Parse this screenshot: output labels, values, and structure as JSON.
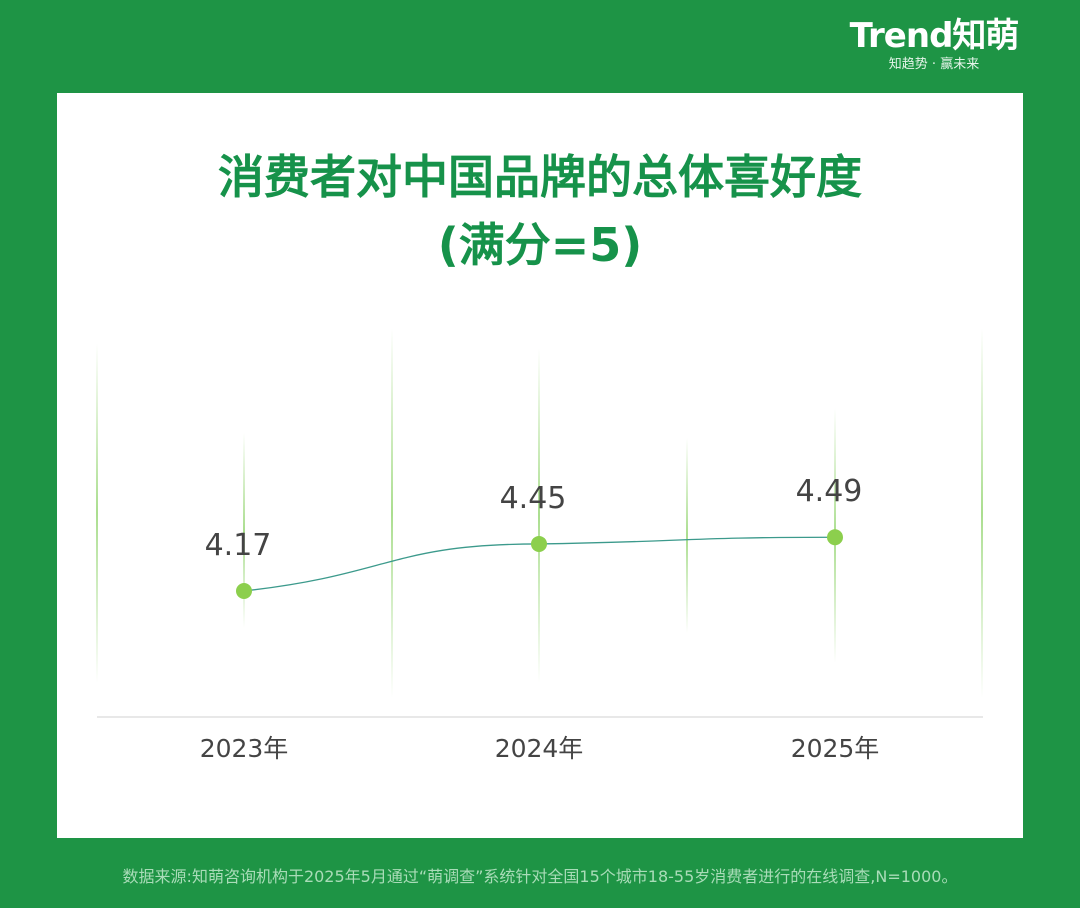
{
  "brand": {
    "logo": "Trend知萌",
    "tagline": "知趋势 · 赢未来"
  },
  "colors": {
    "background": "#1e9445",
    "title": "#16924a",
    "line": "#3c9a8c",
    "marker": "#8ccf4d",
    "label": "#444444"
  },
  "chart_data": {
    "type": "line",
    "title_lines": [
      "消费者对中国品牌的总体喜好度",
      "(满分=5)"
    ],
    "categories": [
      "2023年",
      "2024年",
      "2025年"
    ],
    "series": [
      {
        "values": [
          4.17,
          4.45,
          4.49
        ],
        "labels": [
          "4.17",
          "4.45",
          "4.49"
        ]
      }
    ],
    "xlabel": "",
    "ylabel": "",
    "grid": false
  },
  "source": "数据来源:知萌咨询机构于2025年5月通过“萌调查”系统针对全国15个城市18-55岁消费者进行的在线调查,N=1000。"
}
